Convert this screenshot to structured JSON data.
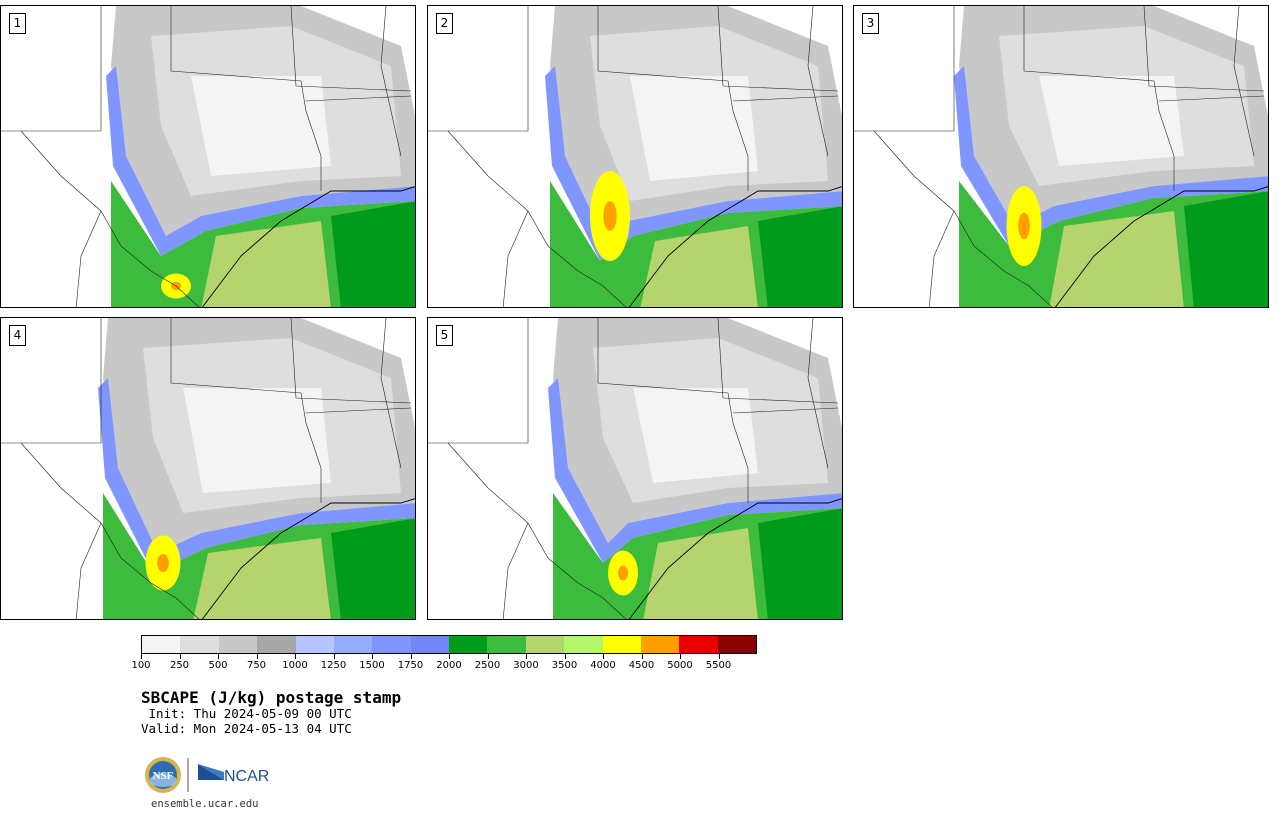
{
  "panels": [
    {
      "label": "1"
    },
    {
      "label": "2"
    },
    {
      "label": "3"
    },
    {
      "label": "4"
    },
    {
      "label": "5"
    }
  ],
  "colorbar": {
    "colors": [
      "#f4f4f4",
      "#dedede",
      "#c8c8c8",
      "#a8a8a8",
      "#b8c6ff",
      "#96acff",
      "#7f95ff",
      "#7187f5",
      "#009b1a",
      "#3dbb3d",
      "#b5d46e",
      "#b3f56b",
      "#ffff00",
      "#ffa000",
      "#e60000",
      "#880000"
    ],
    "tick_labels": [
      "100",
      "250",
      "500",
      "750",
      "1000",
      "1250",
      "1500",
      "1750",
      "2000",
      "2500",
      "3000",
      "3500",
      "4000",
      "4500",
      "5000",
      "5500"
    ]
  },
  "title": "SBCAPE (J/kg) postage stamp",
  "init": " Init: Thu 2024-05-09 00 UTC",
  "valid": "Valid: Mon 2024-05-13 04 UTC",
  "logos": {
    "nsf": "NSF",
    "ncar": "NCAR"
  },
  "url": "ensemble.ucar.edu"
}
